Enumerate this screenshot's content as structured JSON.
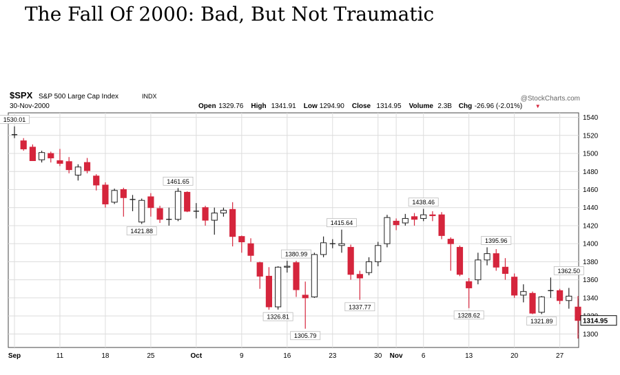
{
  "headline": "The Fall Of 2000: Bad, But Not Traumatic",
  "header": {
    "symbol": "$SPX",
    "name": "S&P 500 Large Cap Index",
    "exchange": "INDX",
    "date": "30-Nov-2000",
    "watermark": "@StockCharts.com",
    "stats": [
      {
        "label": "Open",
        "value": "1329.76"
      },
      {
        "label": "High",
        "value": "1341.91"
      },
      {
        "label": "Low",
        "value": "1294.90"
      },
      {
        "label": "Close",
        "value": "1314.95"
      },
      {
        "label": "Volume",
        "value": "2.3B"
      },
      {
        "label": "Chg",
        "value": "-26.96 (-2.01%)"
      }
    ],
    "chg_arrow": "▼"
  },
  "colors": {
    "down": "#d5253c",
    "up": "#ffffff",
    "edge": "#222222",
    "grid": "#dcdcdc",
    "frame": "#444444"
  },
  "chart_data": {
    "type": "candlestick",
    "ylim": [
      1285,
      1545
    ],
    "yticks": [
      1300,
      1320,
      1340,
      1360,
      1380,
      1400,
      1420,
      1440,
      1460,
      1480,
      1500,
      1520,
      1540
    ],
    "xticks": [
      {
        "label": "Sep",
        "index": 0
      },
      {
        "label": "11",
        "index": 5
      },
      {
        "label": "18",
        "index": 10
      },
      {
        "label": "25",
        "index": 15
      },
      {
        "label": "Oct",
        "index": 20
      },
      {
        "label": "9",
        "index": 25
      },
      {
        "label": "16",
        "index": 30
      },
      {
        "label": "23",
        "index": 35
      },
      {
        "label": "30",
        "index": 40
      },
      {
        "label": "Nov",
        "index": 42
      },
      {
        "label": "6",
        "index": 45
      },
      {
        "label": "13",
        "index": 50
      },
      {
        "label": "20",
        "index": 55
      },
      {
        "label": "27",
        "index": 60
      }
    ],
    "last_price_label": "1314.95",
    "annotations": [
      {
        "text": "1530.01",
        "index": 0,
        "value": 1530.01,
        "pos": "above"
      },
      {
        "text": "1461.65",
        "index": 18,
        "value": 1461.65,
        "pos": "above"
      },
      {
        "text": "1421.88",
        "index": 14,
        "value": 1421.88,
        "pos": "below"
      },
      {
        "text": "1326.81",
        "index": 29,
        "value": 1326.81,
        "pos": "below"
      },
      {
        "text": "1380.99",
        "index": 31,
        "value": 1380.99,
        "pos": "above"
      },
      {
        "text": "1305.79",
        "index": 32,
        "value": 1305.79,
        "pos": "below"
      },
      {
        "text": "1415.64",
        "index": 36,
        "value": 1415.64,
        "pos": "above"
      },
      {
        "text": "1337.77",
        "index": 38,
        "value": 1337.77,
        "pos": "below"
      },
      {
        "text": "1438.46",
        "index": 45,
        "value": 1438.46,
        "pos": "above"
      },
      {
        "text": "1328.62",
        "index": 50,
        "value": 1328.62,
        "pos": "below"
      },
      {
        "text": "1395.96",
        "index": 53,
        "value": 1395.96,
        "pos": "above"
      },
      {
        "text": "1321.89",
        "index": 58,
        "value": 1321.89,
        "pos": "below"
      },
      {
        "text": "1362.50",
        "index": 61,
        "value": 1362.5,
        "pos": "above"
      }
    ],
    "candles": [
      {
        "date": "2000-09-01",
        "o": 1520.8,
        "h": 1530.0,
        "l": 1517.0,
        "c": 1520.8
      },
      {
        "date": "2000-09-05",
        "o": 1514.0,
        "h": 1517.0,
        "l": 1503.0,
        "c": 1505.0
      },
      {
        "date": "2000-09-06",
        "o": 1507.0,
        "h": 1510.0,
        "l": 1492.0,
        "c": 1492.0
      },
      {
        "date": "2000-09-07",
        "o": 1493.0,
        "h": 1503.0,
        "l": 1490.0,
        "c": 1501.0
      },
      {
        "date": "2000-09-08",
        "o": 1500.0,
        "h": 1502.0,
        "l": 1490.0,
        "c": 1495.0
      },
      {
        "date": "2000-09-11",
        "o": 1492.0,
        "h": 1505.0,
        "l": 1486.0,
        "c": 1489.0
      },
      {
        "date": "2000-09-12",
        "o": 1491.0,
        "h": 1496.0,
        "l": 1478.0,
        "c": 1482.0
      },
      {
        "date": "2000-09-13",
        "o": 1476.0,
        "h": 1488.0,
        "l": 1470.0,
        "c": 1485.0
      },
      {
        "date": "2000-09-14",
        "o": 1490.0,
        "h": 1495.0,
        "l": 1478.0,
        "c": 1481.0
      },
      {
        "date": "2000-09-15",
        "o": 1475.0,
        "h": 1477.0,
        "l": 1459.0,
        "c": 1465.0
      },
      {
        "date": "2000-09-18",
        "o": 1465.0,
        "h": 1468.0,
        "l": 1440.0,
        "c": 1444.0
      },
      {
        "date": "2000-09-19",
        "o": 1446.0,
        "h": 1461.0,
        "l": 1444.0,
        "c": 1459.0
      },
      {
        "date": "2000-09-20",
        "o": 1460.0,
        "h": 1462.0,
        "l": 1430.0,
        "c": 1451.0
      },
      {
        "date": "2000-09-21",
        "o": 1449.0,
        "h": 1454.0,
        "l": 1436.0,
        "c": 1449.0
      },
      {
        "date": "2000-09-22",
        "o": 1424.0,
        "h": 1450.0,
        "l": 1421.9,
        "c": 1448.0
      },
      {
        "date": "2000-09-25",
        "o": 1452.0,
        "h": 1456.0,
        "l": 1430.0,
        "c": 1440.0
      },
      {
        "date": "2000-09-26",
        "o": 1439.0,
        "h": 1442.0,
        "l": 1423.0,
        "c": 1427.0
      },
      {
        "date": "2000-09-27",
        "o": 1427.0,
        "h": 1440.0,
        "l": 1420.0,
        "c": 1427.0
      },
      {
        "date": "2000-09-28",
        "o": 1427.0,
        "h": 1461.6,
        "l": 1425.0,
        "c": 1458.0
      },
      {
        "date": "2000-09-29",
        "o": 1457.0,
        "h": 1458.0,
        "l": 1435.0,
        "c": 1436.0
      },
      {
        "date": "2000-10-02",
        "o": 1436.0,
        "h": 1445.0,
        "l": 1428.0,
        "c": 1436.0
      },
      {
        "date": "2000-10-03",
        "o": 1440.0,
        "h": 1442.0,
        "l": 1420.0,
        "c": 1426.0
      },
      {
        "date": "2000-10-04",
        "o": 1426.0,
        "h": 1440.0,
        "l": 1410.0,
        "c": 1434.0
      },
      {
        "date": "2000-10-05",
        "o": 1434.0,
        "h": 1440.0,
        "l": 1430.0,
        "c": 1437.0
      },
      {
        "date": "2000-10-06",
        "o": 1438.0,
        "h": 1446.0,
        "l": 1397.0,
        "c": 1408.0
      },
      {
        "date": "2000-10-09",
        "o": 1408.0,
        "h": 1409.0,
        "l": 1390.0,
        "c": 1402.0
      },
      {
        "date": "2000-10-10",
        "o": 1400.0,
        "h": 1406.0,
        "l": 1380.0,
        "c": 1387.0
      },
      {
        "date": "2000-10-11",
        "o": 1379.0,
        "h": 1380.0,
        "l": 1350.0,
        "c": 1364.0
      },
      {
        "date": "2000-10-12",
        "o": 1364.0,
        "h": 1374.0,
        "l": 1326.8,
        "c": 1330.0
      },
      {
        "date": "2000-10-13",
        "o": 1330.0,
        "h": 1375.0,
        "l": 1327.0,
        "c": 1374.0
      },
      {
        "date": "2000-10-16",
        "o": 1374.0,
        "h": 1381.0,
        "l": 1368.0,
        "c": 1375.0
      },
      {
        "date": "2000-10-17",
        "o": 1379.0,
        "h": 1381.0,
        "l": 1341.0,
        "c": 1349.0
      },
      {
        "date": "2000-10-18",
        "o": 1343.0,
        "h": 1358.0,
        "l": 1305.8,
        "c": 1340.0
      },
      {
        "date": "2000-10-19",
        "o": 1341.0,
        "h": 1390.0,
        "l": 1340.0,
        "c": 1388.0
      },
      {
        "date": "2000-10-20",
        "o": 1388.0,
        "h": 1408.0,
        "l": 1385.0,
        "c": 1401.0
      },
      {
        "date": "2000-10-23",
        "o": 1400.0,
        "h": 1405.0,
        "l": 1395.0,
        "c": 1400.0
      },
      {
        "date": "2000-10-24",
        "o": 1398.0,
        "h": 1415.6,
        "l": 1390.0,
        "c": 1400.0
      },
      {
        "date": "2000-10-25",
        "o": 1396.0,
        "h": 1399.0,
        "l": 1360.0,
        "c": 1366.0
      },
      {
        "date": "2000-10-26",
        "o": 1366.0,
        "h": 1370.0,
        "l": 1337.8,
        "c": 1362.0
      },
      {
        "date": "2000-10-27",
        "o": 1368.0,
        "h": 1385.0,
        "l": 1365.0,
        "c": 1380.0
      },
      {
        "date": "2000-10-30",
        "o": 1380.0,
        "h": 1402.0,
        "l": 1375.0,
        "c": 1398.0
      },
      {
        "date": "2000-10-31",
        "o": 1400.0,
        "h": 1432.0,
        "l": 1396.0,
        "c": 1429.0
      },
      {
        "date": "2000-11-01",
        "o": 1425.0,
        "h": 1428.0,
        "l": 1415.0,
        "c": 1421.0
      },
      {
        "date": "2000-11-02",
        "o": 1423.0,
        "h": 1433.0,
        "l": 1420.0,
        "c": 1428.0
      },
      {
        "date": "2000-11-03",
        "o": 1430.0,
        "h": 1434.0,
        "l": 1420.0,
        "c": 1427.0
      },
      {
        "date": "2000-11-06",
        "o": 1428.0,
        "h": 1438.5,
        "l": 1425.0,
        "c": 1432.0
      },
      {
        "date": "2000-11-07",
        "o": 1432.0,
        "h": 1436.0,
        "l": 1425.0,
        "c": 1431.0
      },
      {
        "date": "2000-11-08",
        "o": 1432.0,
        "h": 1435.0,
        "l": 1405.0,
        "c": 1409.0
      },
      {
        "date": "2000-11-09",
        "o": 1405.0,
        "h": 1407.0,
        "l": 1370.0,
        "c": 1400.0
      },
      {
        "date": "2000-11-10",
        "o": 1396.0,
        "h": 1398.0,
        "l": 1364.0,
        "c": 1366.0
      },
      {
        "date": "2000-11-13",
        "o": 1358.0,
        "h": 1362.0,
        "l": 1328.6,
        "c": 1351.0
      },
      {
        "date": "2000-11-14",
        "o": 1360.0,
        "h": 1390.0,
        "l": 1355.0,
        "c": 1382.0
      },
      {
        "date": "2000-11-15",
        "o": 1382.0,
        "h": 1396.0,
        "l": 1376.0,
        "c": 1389.0
      },
      {
        "date": "2000-11-16",
        "o": 1389.0,
        "h": 1394.0,
        "l": 1370.0,
        "c": 1374.0
      },
      {
        "date": "2000-11-17",
        "o": 1374.0,
        "h": 1384.0,
        "l": 1360.0,
        "c": 1367.0
      },
      {
        "date": "2000-11-20",
        "o": 1363.0,
        "h": 1367.0,
        "l": 1340.0,
        "c": 1343.0
      },
      {
        "date": "2000-11-21",
        "o": 1343.0,
        "h": 1355.0,
        "l": 1335.0,
        "c": 1347.0
      },
      {
        "date": "2000-11-22",
        "o": 1345.0,
        "h": 1347.0,
        "l": 1321.9,
        "c": 1323.0
      },
      {
        "date": "2000-11-24",
        "o": 1324.0,
        "h": 1342.0,
        "l": 1322.0,
        "c": 1341.0
      },
      {
        "date": "2000-11-27",
        "o": 1348.0,
        "h": 1362.5,
        "l": 1340.0,
        "c": 1348.0
      },
      {
        "date": "2000-11-28",
        "o": 1348.0,
        "h": 1350.0,
        "l": 1333.0,
        "c": 1337.0
      },
      {
        "date": "2000-11-29",
        "o": 1337.0,
        "h": 1351.0,
        "l": 1328.0,
        "c": 1341.9
      },
      {
        "date": "2000-11-30",
        "o": 1329.8,
        "h": 1341.9,
        "l": 1294.9,
        "c": 1314.95
      }
    ]
  }
}
